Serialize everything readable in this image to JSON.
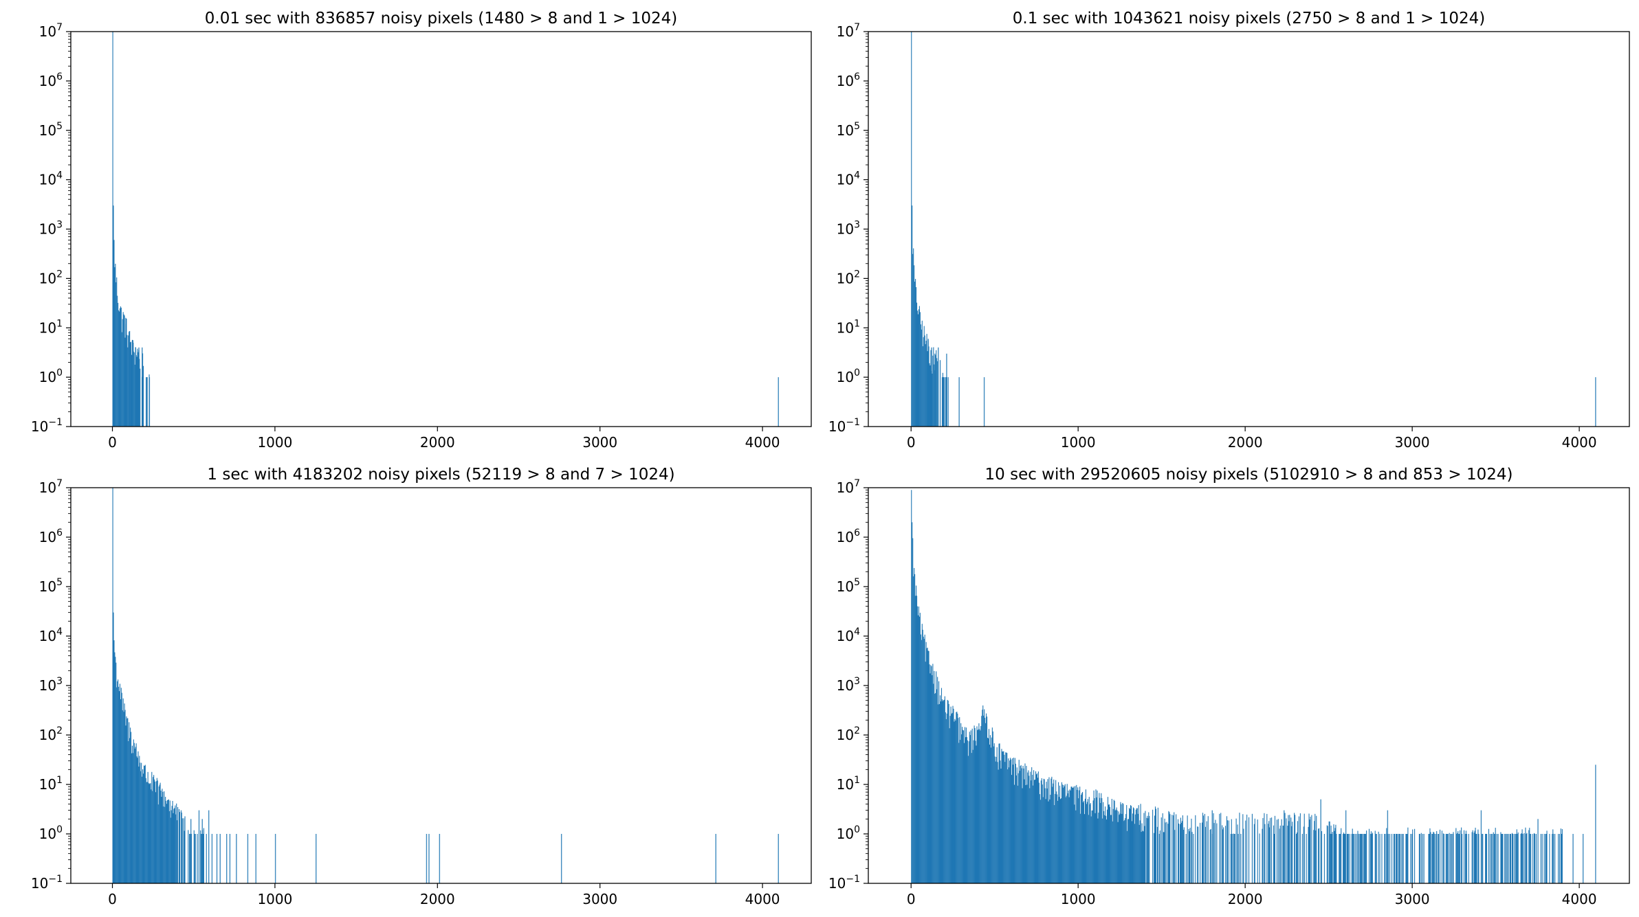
{
  "chart_data": [
    {
      "type": "bar",
      "title": "0.01 sec with 836857 noisy pixels (1480 > 8 and 1 > 1024)",
      "xlabel": "",
      "ylabel": "",
      "yscale": "log",
      "ylim": [
        0.1,
        10000000
      ],
      "xlim": [
        -256,
        4300
      ],
      "xticks": [
        0,
        1000,
        2000,
        3000,
        4000
      ],
      "yticks": [
        {
          "base": "10",
          "exp": "−1"
        },
        {
          "base": "10",
          "exp": "0"
        },
        {
          "base": "10",
          "exp": "1"
        },
        {
          "base": "10",
          "exp": "2"
        },
        {
          "base": "10",
          "exp": "3"
        },
        {
          "base": "10",
          "exp": "4"
        },
        {
          "base": "10",
          "exp": "5"
        },
        {
          "base": "10",
          "exp": "6"
        },
        {
          "base": "10",
          "exp": "7"
        }
      ],
      "grid": false,
      "bar_color": "#1f77b4",
      "envelope": [
        [
          0,
          10000000
        ],
        [
          1,
          10000000
        ],
        [
          2,
          15000
        ],
        [
          4,
          3000
        ],
        [
          6,
          800
        ],
        [
          10,
          400
        ],
        [
          15,
          200
        ],
        [
          20,
          120
        ],
        [
          30,
          60
        ],
        [
          40,
          35
        ],
        [
          55,
          20
        ],
        [
          70,
          18
        ],
        [
          90,
          10
        ],
        [
          110,
          6
        ],
        [
          130,
          4
        ],
        [
          150,
          4
        ],
        [
          170,
          3
        ],
        [
          190,
          2
        ],
        [
          200,
          1
        ],
        [
          230,
          1
        ]
      ],
      "bars": [
        [
          4095,
          1
        ],
        [
          225,
          1
        ],
        [
          205,
          1
        ],
        [
          180,
          4
        ],
        [
          160,
          4
        ],
        [
          140,
          4
        ],
        [
          125,
          5
        ],
        [
          100,
          8
        ],
        [
          80,
          12
        ]
      ]
    },
    {
      "type": "bar",
      "title": "0.1 sec with 1043621 noisy pixels (2750 > 8 and 1 > 1024)",
      "xlabel": "",
      "ylabel": "",
      "yscale": "log",
      "ylim": [
        0.1,
        10000000
      ],
      "xlim": [
        -256,
        4300
      ],
      "xticks": [
        0,
        1000,
        2000,
        3000,
        4000
      ],
      "yticks": [
        {
          "base": "10",
          "exp": "−1"
        },
        {
          "base": "10",
          "exp": "0"
        },
        {
          "base": "10",
          "exp": "1"
        },
        {
          "base": "10",
          "exp": "2"
        },
        {
          "base": "10",
          "exp": "3"
        },
        {
          "base": "10",
          "exp": "4"
        },
        {
          "base": "10",
          "exp": "5"
        },
        {
          "base": "10",
          "exp": "6"
        },
        {
          "base": "10",
          "exp": "7"
        }
      ],
      "grid": false,
      "bar_color": "#1f77b4",
      "envelope": [
        [
          0,
          10000000
        ],
        [
          1,
          10000000
        ],
        [
          2,
          20000
        ],
        [
          4,
          3000
        ],
        [
          6,
          1000
        ],
        [
          10,
          500
        ],
        [
          15,
          200
        ],
        [
          20,
          100
        ],
        [
          30,
          50
        ],
        [
          40,
          30
        ],
        [
          55,
          15
        ],
        [
          70,
          10
        ],
        [
          90,
          6
        ],
        [
          110,
          4
        ],
        [
          130,
          3
        ],
        [
          150,
          3
        ],
        [
          170,
          2
        ],
        [
          190,
          1
        ],
        [
          225,
          1
        ]
      ],
      "bars": [
        [
          285,
          1
        ],
        [
          435,
          1
        ],
        [
          4095,
          1
        ],
        [
          160,
          4
        ],
        [
          140,
          3
        ],
        [
          210,
          3
        ],
        [
          120,
          4
        ],
        [
          100,
          6
        ]
      ]
    },
    {
      "type": "bar",
      "title": "1 sec with 4183202 noisy pixels (52119 > 8 and 7 > 1024)",
      "xlabel": "",
      "ylabel": "",
      "yscale": "log",
      "ylim": [
        0.1,
        10000000
      ],
      "xlim": [
        -256,
        4300
      ],
      "xticks": [
        0,
        1000,
        2000,
        3000,
        4000
      ],
      "yticks": [
        {
          "base": "10",
          "exp": "−1"
        },
        {
          "base": "10",
          "exp": "0"
        },
        {
          "base": "10",
          "exp": "1"
        },
        {
          "base": "10",
          "exp": "2"
        },
        {
          "base": "10",
          "exp": "3"
        },
        {
          "base": "10",
          "exp": "4"
        },
        {
          "base": "10",
          "exp": "5"
        },
        {
          "base": "10",
          "exp": "6"
        },
        {
          "base": "10",
          "exp": "7"
        }
      ],
      "grid": false,
      "bar_color": "#1f77b4",
      "envelope": [
        [
          0,
          10000000
        ],
        [
          1,
          10000000
        ],
        [
          2,
          200000
        ],
        [
          4,
          30000
        ],
        [
          8,
          10000
        ],
        [
          15,
          4000
        ],
        [
          25,
          2000
        ],
        [
          40,
          1200
        ],
        [
          60,
          500
        ],
        [
          80,
          250
        ],
        [
          100,
          150
        ],
        [
          130,
          80
        ],
        [
          160,
          40
        ],
        [
          200,
          20
        ],
        [
          250,
          12
        ],
        [
          300,
          8
        ],
        [
          350,
          5
        ],
        [
          400,
          3
        ],
        [
          450,
          2
        ],
        [
          500,
          1
        ],
        [
          580,
          1
        ]
      ],
      "bars": [
        [
          610,
          1
        ],
        [
          640,
          1
        ],
        [
          660,
          1
        ],
        [
          700,
          1
        ],
        [
          720,
          1
        ],
        [
          760,
          1
        ],
        [
          830,
          1
        ],
        [
          880,
          1
        ],
        [
          1000,
          1
        ],
        [
          1250,
          1
        ],
        [
          1930,
          1
        ],
        [
          1945,
          1
        ],
        [
          2010,
          1
        ],
        [
          2760,
          1
        ],
        [
          3710,
          1
        ],
        [
          4095,
          1
        ],
        [
          360,
          3
        ],
        [
          420,
          3
        ],
        [
          480,
          2
        ],
        [
          530,
          3
        ],
        [
          550,
          2
        ],
        [
          590,
          3
        ]
      ]
    },
    {
      "type": "bar",
      "title": "10 sec with 29520605 noisy pixels (5102910 > 8 and 853 > 1024)",
      "xlabel": "",
      "ylabel": "",
      "yscale": "log",
      "ylim": [
        0.1,
        10000000
      ],
      "xlim": [
        -256,
        4300
      ],
      "xticks": [
        0,
        1000,
        2000,
        3000,
        4000
      ],
      "yticks": [
        {
          "base": "10",
          "exp": "−1"
        },
        {
          "base": "10",
          "exp": "0"
        },
        {
          "base": "10",
          "exp": "1"
        },
        {
          "base": "10",
          "exp": "2"
        },
        {
          "base": "10",
          "exp": "3"
        },
        {
          "base": "10",
          "exp": "4"
        },
        {
          "base": "10",
          "exp": "5"
        },
        {
          "base": "10",
          "exp": "6"
        },
        {
          "base": "10",
          "exp": "7"
        }
      ],
      "grid": false,
      "bar_color": "#1f77b4",
      "envelope": [
        [
          0,
          9000000
        ],
        [
          1,
          9000000
        ],
        [
          4,
          2000000
        ],
        [
          10,
          500000
        ],
        [
          20,
          150000
        ],
        [
          40,
          40000
        ],
        [
          60,
          15000
        ],
        [
          80,
          8000
        ],
        [
          100,
          4000
        ],
        [
          130,
          2500
        ],
        [
          150,
          1500
        ],
        [
          180,
          700
        ],
        [
          210,
          400
        ],
        [
          230,
          350
        ],
        [
          250,
          300
        ],
        [
          280,
          200
        ],
        [
          310,
          120
        ],
        [
          340,
          100
        ],
        [
          370,
          110
        ],
        [
          390,
          150
        ],
        [
          410,
          250
        ],
        [
          430,
          300
        ],
        [
          450,
          250
        ],
        [
          470,
          150
        ],
        [
          500,
          70
        ],
        [
          550,
          40
        ],
        [
          600,
          30
        ],
        [
          700,
          18
        ],
        [
          800,
          12
        ],
        [
          900,
          9
        ],
        [
          1000,
          7
        ],
        [
          1100,
          6
        ],
        [
          1200,
          4
        ],
        [
          1300,
          3
        ],
        [
          1400,
          3
        ],
        [
          1600,
          2
        ],
        [
          1800,
          2
        ],
        [
          2000,
          2
        ],
        [
          2200,
          2
        ],
        [
          2400,
          2
        ],
        [
          2600,
          1
        ],
        [
          2800,
          1
        ],
        [
          3000,
          1
        ],
        [
          3200,
          1
        ],
        [
          3400,
          1
        ],
        [
          3600,
          1
        ],
        [
          3800,
          1
        ],
        [
          3900,
          1
        ]
      ],
      "bars": [
        [
          4095,
          25
        ],
        [
          1040,
          1
        ],
        [
          1800,
          3
        ],
        [
          2450,
          5
        ],
        [
          2230,
          3
        ],
        [
          2600,
          3
        ],
        [
          2850,
          3
        ],
        [
          3410,
          3
        ],
        [
          3750,
          2
        ],
        [
          3960,
          1
        ],
        [
          4020,
          1
        ]
      ]
    }
  ]
}
